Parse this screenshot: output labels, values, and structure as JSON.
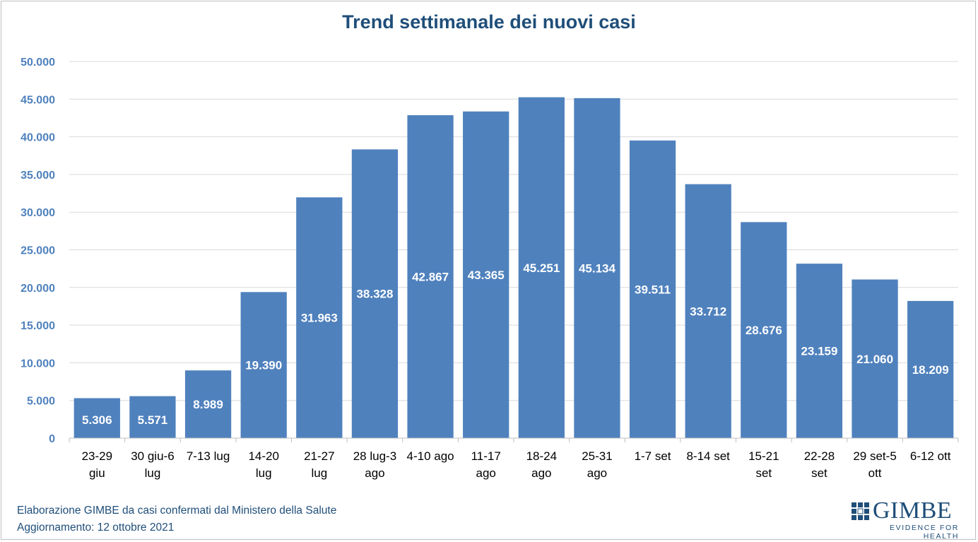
{
  "chart_data": {
    "type": "bar",
    "title": "Trend settimanale dei nuovi casi",
    "categories": [
      [
        "23-29",
        "giu"
      ],
      [
        "30 giu-6",
        "lug"
      ],
      [
        "7-13 lug"
      ],
      [
        "14-20",
        "lug"
      ],
      [
        "21-27",
        "lug"
      ],
      [
        "28 lug-3",
        "ago"
      ],
      [
        "4-10 ago"
      ],
      [
        "11-17",
        "ago"
      ],
      [
        "18-24",
        "ago"
      ],
      [
        "25-31",
        "ago"
      ],
      [
        "1-7 set"
      ],
      [
        "8-14 set"
      ],
      [
        "15-21",
        "set"
      ],
      [
        "22-28",
        "set"
      ],
      [
        "29 set-5",
        "ott"
      ],
      [
        "6-12 ott"
      ]
    ],
    "values": [
      5306,
      5571,
      8989,
      19390,
      31963,
      38328,
      42867,
      43365,
      45251,
      45134,
      39511,
      33712,
      28676,
      23159,
      21060,
      18209
    ],
    "value_labels": [
      "5.306",
      "5.571",
      "8.989",
      "19.390",
      "31.963",
      "38.328",
      "42.867",
      "43.365",
      "45.251",
      "45.134",
      "39.511",
      "33.712",
      "28.676",
      "23.159",
      "21.060",
      "18.209"
    ],
    "yticks": [
      "0",
      "5.000",
      "10.000",
      "15.000",
      "20.000",
      "25.000",
      "30.000",
      "35.000",
      "40.000",
      "45.000",
      "50.000"
    ],
    "ylim": [
      0,
      50000
    ],
    "grid": true,
    "bar_color": "#4f81bd",
    "axis_label_color": "#4f81bd",
    "title_color": "#1f4e79"
  },
  "footer": {
    "line1": "Elaborazione GIMBE da casi confermati dal Ministero della Salute",
    "line2": "Aggiornamento: 12 ottobre 2021"
  },
  "logo": {
    "word": "GIMBE",
    "tagline": "EVIDENCE FOR HEALTH"
  }
}
